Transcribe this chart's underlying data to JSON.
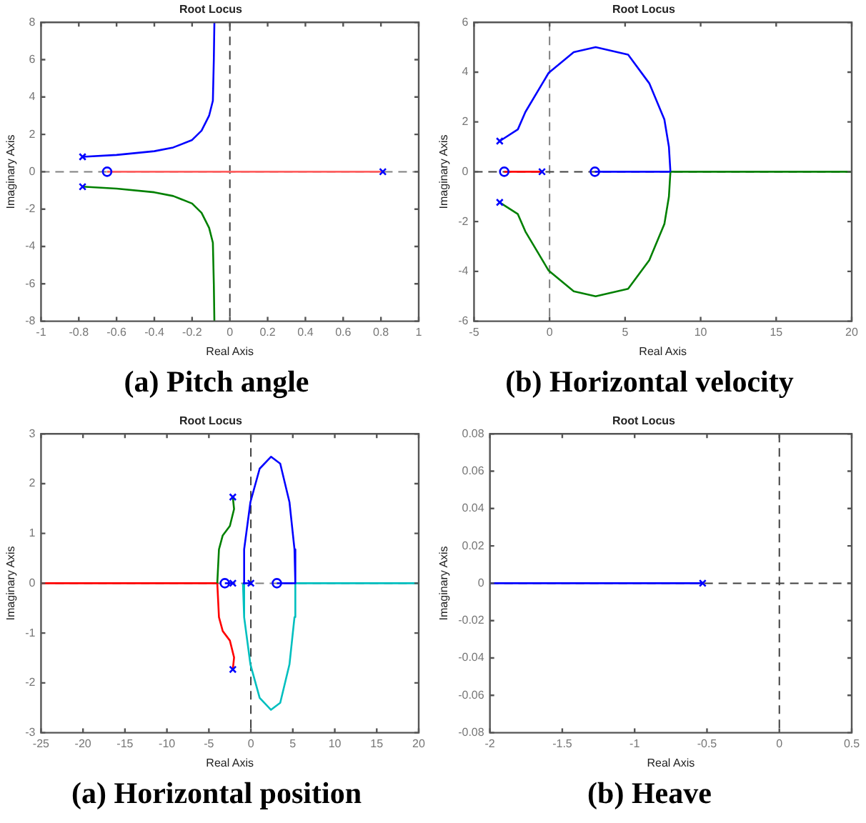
{
  "chart_data": [
    {
      "type": "line",
      "title": "Root Locus",
      "xlabel": "Real Axis",
      "ylabel": "Imaginary Axis",
      "annotations": [
        "(a)  Pitch angle"
      ],
      "xlim": [
        -1,
        1
      ],
      "xticks": [
        -1,
        -0.8,
        -0.6,
        -0.4,
        -0.2,
        0,
        0.2,
        0.4,
        0.6,
        0.8,
        1
      ],
      "ylim": [
        -8,
        8
      ],
      "yticks": [
        -8,
        -6,
        -4,
        -2,
        0,
        2,
        4,
        6,
        8
      ],
      "grid": false,
      "ref_lines": [
        {
          "axis": "x",
          "value": 0,
          "color": "#404040",
          "line_style": "dashed"
        },
        {
          "axis": "y",
          "value": 0,
          "color": "#808080",
          "line_style": "dashed"
        }
      ],
      "series": [
        {
          "type": "line",
          "color": "#ff6060",
          "x": [
            0.81,
            -0.65
          ],
          "values": [
            0,
            0
          ],
          "marker": "none"
        },
        {
          "type": "line",
          "color": "#0000ff",
          "x": [
            -0.78,
            -0.6,
            -0.4,
            -0.3,
            -0.2,
            -0.15,
            -0.11,
            -0.09,
            -0.085,
            -0.082
          ],
          "values": [
            0.8,
            0.9,
            1.1,
            1.3,
            1.7,
            2.2,
            3,
            3.8,
            6,
            8
          ],
          "marker": "none"
        },
        {
          "type": "line",
          "color": "#008000",
          "x": [
            -0.78,
            -0.6,
            -0.4,
            -0.3,
            -0.2,
            -0.15,
            -0.11,
            -0.09,
            -0.085,
            -0.082
          ],
          "values": [
            -0.8,
            -0.9,
            -1.1,
            -1.3,
            -1.7,
            -2.2,
            -3,
            -3.8,
            -6,
            -8
          ],
          "marker": "none"
        },
        {
          "type": "scatter",
          "color": "#0000ff",
          "x": [
            -0.78,
            -0.78,
            0.81
          ],
          "values": [
            0.8,
            -0.8,
            0
          ],
          "marker": "cross"
        },
        {
          "type": "scatter",
          "color": "#0000ff",
          "x": [
            -0.65
          ],
          "values": [
            0
          ],
          "marker": "circle"
        }
      ]
    },
    {
      "type": "line",
      "title": "Root Locus",
      "xlabel": "Real Axis",
      "ylabel": "Imaginary Axis",
      "annotations": [
        "(b) Horizontal velocity"
      ],
      "xlim": [
        -5,
        20
      ],
      "xticks": [
        -5,
        0,
        5,
        10,
        15,
        20
      ],
      "ylim": [
        -6,
        6
      ],
      "yticks": [
        -6,
        -4,
        -2,
        0,
        2,
        4,
        6
      ],
      "grid": false,
      "ref_lines": [
        {
          "axis": "x",
          "value": 0,
          "color": "#808080",
          "line_style": "dashed"
        },
        {
          "axis": "y",
          "value": 0,
          "color": "#404040",
          "line_style": "dashed"
        }
      ],
      "series": [
        {
          "type": "line",
          "color": "#ff0000",
          "x": [
            -0.5,
            -3
          ],
          "values": [
            0,
            0
          ],
          "marker": "none"
        },
        {
          "type": "line",
          "color": "#0000ff",
          "x": [
            -3.3,
            -2.1,
            -1.6,
            -0.06,
            1.6,
            3.05,
            5.2,
            6.6,
            7.6,
            7.9,
            8.0
          ],
          "values": [
            1.23,
            1.7,
            2.4,
            3.97,
            4.8,
            5.0,
            4.7,
            3.55,
            2.1,
            1.0,
            0
          ],
          "marker": "none"
        },
        {
          "type": "line",
          "color": "#0000ff",
          "x": [
            3,
            8
          ],
          "values": [
            0,
            0
          ],
          "marker": "none"
        },
        {
          "type": "line",
          "color": "#008000",
          "x": [
            -3.3,
            -2.1,
            -1.6,
            -0.06,
            1.6,
            3.05,
            5.2,
            6.6,
            7.6,
            7.9,
            8.0,
            20
          ],
          "values": [
            -1.23,
            -1.7,
            -2.4,
            -3.97,
            -4.8,
            -5.0,
            -4.7,
            -3.55,
            -2.1,
            -1.0,
            0,
            0
          ],
          "marker": "none"
        },
        {
          "type": "scatter",
          "color": "#0000ff",
          "x": [
            -3.3,
            -3.3,
            -0.5
          ],
          "values": [
            1.23,
            -1.23,
            0
          ],
          "marker": "cross"
        },
        {
          "type": "scatter",
          "color": "#0000ff",
          "x": [
            -3,
            3
          ],
          "values": [
            0,
            0
          ],
          "marker": "circle"
        }
      ]
    },
    {
      "type": "line",
      "title": "Root Locus",
      "xlabel": "Real Axis",
      "ylabel": "Imaginary Axis",
      "annotations": [
        "(a) Horizontal position"
      ],
      "xlim": [
        -25,
        20
      ],
      "xticks": [
        -25,
        -20,
        -15,
        -10,
        -5,
        0,
        5,
        10,
        15,
        20
      ],
      "ylim": [
        -3,
        3
      ],
      "yticks": [
        -3,
        -2,
        -1,
        0,
        1,
        2,
        3
      ],
      "grid": false,
      "ref_lines": [
        {
          "axis": "x",
          "value": 0,
          "color": "#404040",
          "line_style": "dashed"
        },
        {
          "axis": "y",
          "value": 0,
          "color": "#808080",
          "line_style": "dashed"
        }
      ],
      "series": [
        {
          "type": "line",
          "color": "#008000",
          "x": [
            -2.15,
            -2.0,
            -2.5,
            -3.35,
            -3.8,
            -4.0
          ],
          "values": [
            1.73,
            1.49,
            1.15,
            0.96,
            0.68,
            0
          ],
          "marker": "none"
        },
        {
          "type": "line",
          "color": "#ff0000",
          "x": [
            -2.15,
            -2.0,
            -2.5,
            -3.35,
            -3.8,
            -4.0,
            -25
          ],
          "values": [
            -1.73,
            -1.49,
            -1.15,
            -0.96,
            -0.68,
            0,
            0
          ],
          "marker": "none"
        },
        {
          "type": "line",
          "color": "#0000ff",
          "x": [
            -3.1,
            -2.15
          ],
          "values": [
            0,
            0
          ],
          "marker": "none"
        },
        {
          "type": "line",
          "color": "#0000ff",
          "x": [
            -0.94,
            0
          ],
          "values": [
            0,
            0
          ],
          "marker": "none"
        },
        {
          "type": "line",
          "color": "#0000ff",
          "x": [
            3.1,
            5.3
          ],
          "values": [
            0,
            0
          ],
          "marker": "none"
        },
        {
          "type": "line",
          "color": "#0000ff",
          "x": [
            -0.94,
            -0.8,
            -0.05,
            1.05,
            2.4,
            3.5,
            4.6,
            5.2,
            5.3
          ],
          "values": [
            0,
            0.68,
            1.63,
            2.3,
            2.54,
            2.4,
            1.63,
            0.68,
            0
          ],
          "marker": "none"
        },
        {
          "type": "line",
          "color": "#00bfbf",
          "x": [
            -0.94,
            -0.8,
            -0.05,
            1.05,
            2.4,
            3.5,
            4.6,
            5.2,
            5.3,
            20
          ],
          "values": [
            0,
            -0.68,
            -1.63,
            -2.3,
            -2.54,
            -2.4,
            -1.63,
            -0.68,
            0,
            0
          ],
          "marker": "none"
        },
        {
          "type": "scatter",
          "color": "#0000ff",
          "x": [
            -2.15,
            -2.15,
            -2.15,
            0
          ],
          "values": [
            1.73,
            -1.73,
            0,
            0
          ],
          "marker": "cross"
        },
        {
          "type": "scatter",
          "color": "#0000ff",
          "x": [
            -3.1,
            3.1
          ],
          "values": [
            0,
            0
          ],
          "marker": "circle"
        }
      ]
    },
    {
      "type": "line",
      "title": "Root Locus",
      "xlabel": "Real Axis",
      "ylabel": "Imaginary Axis",
      "annotations": [
        "(b) Heave"
      ],
      "xlim": [
        -2,
        0.5
      ],
      "xticks": [
        -2,
        -1.5,
        -1,
        -0.5,
        0,
        0.5
      ],
      "ylim": [
        -0.08,
        0.08
      ],
      "yticks": [
        -0.08,
        -0.06,
        -0.04,
        -0.02,
        0,
        0.02,
        0.04,
        0.06,
        0.08
      ],
      "grid": false,
      "ref_lines": [
        {
          "axis": "x",
          "value": 0,
          "color": "#404040",
          "line_style": "dashed"
        },
        {
          "axis": "y",
          "value": 0,
          "color": "#404040",
          "line_style": "dashed"
        }
      ],
      "series": [
        {
          "type": "line",
          "color": "#0000ff",
          "x": [
            -0.53,
            -2
          ],
          "values": [
            0,
            0
          ],
          "marker": "none"
        },
        {
          "type": "scatter",
          "color": "#0000ff",
          "x": [
            -0.53
          ],
          "values": [
            0
          ],
          "marker": "cross"
        }
      ]
    }
  ]
}
